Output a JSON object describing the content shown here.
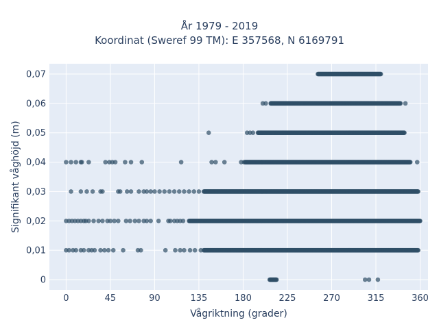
{
  "chart_data": {
    "type": "scatter",
    "title_lines": [
      "År 1979 - 2019",
      "Koordinat (Sweref 99 TM): E 357568, N 6169791"
    ],
    "xlabel": "Vågriktning (grader)",
    "ylabel": "Signifikant våghöjd (m)",
    "xlim": [
      -17,
      368
    ],
    "ylim": [
      -0.0035,
      0.0735
    ],
    "x_ticks": [
      0,
      45,
      90,
      135,
      180,
      225,
      270,
      315,
      360
    ],
    "x_tick_labels": [
      "0",
      "45",
      "90",
      "135",
      "180",
      "225",
      "270",
      "315",
      "360"
    ],
    "y_ticks": [
      0,
      0.01,
      0.02,
      0.03,
      0.04,
      0.05,
      0.06,
      0.07
    ],
    "y_tick_labels": [
      "0",
      "0,01",
      "0,02",
      "0,03",
      "0,04",
      "0,05",
      "0,06",
      "0,07"
    ],
    "grid": true,
    "legend": false,
    "marker_color": "#2f4f66",
    "plot_background": "#e5ecf6",
    "rows": [
      {
        "y": 0.07,
        "dense": [
          [
            256,
            320
          ]
        ],
        "scattered": []
      },
      {
        "y": 0.06,
        "dense": [
          [
            208,
            340
          ]
        ],
        "scattered": [
          200,
          203,
          345
        ]
      },
      {
        "y": 0.05,
        "dense": [
          [
            195,
            344
          ]
        ],
        "scattered": [
          145,
          184,
          187,
          190
        ]
      },
      {
        "y": 0.04,
        "dense": [
          [
            182,
            350
          ]
        ],
        "scattered": [
          0,
          5,
          10,
          15,
          16,
          23,
          40,
          44,
          47,
          50,
          60,
          66,
          77,
          117,
          148,
          152,
          161,
          178,
          181,
          357
        ]
      },
      {
        "y": 0.03,
        "dense": [
          [
            140,
            358
          ]
        ],
        "scattered": [
          5,
          15,
          21,
          27,
          35,
          37,
          53,
          55,
          62,
          66,
          74,
          79,
          82,
          86,
          90,
          95,
          100,
          105,
          110,
          115,
          120,
          125,
          130,
          135
        ]
      },
      {
        "y": 0.02,
        "dense": [
          [
            125,
            360
          ]
        ],
        "scattered": [
          0,
          3,
          6,
          9,
          12,
          15,
          18,
          20,
          23,
          28,
          33,
          37,
          42,
          45,
          49,
          53,
          61,
          65,
          70,
          74,
          79,
          82,
          86,
          94,
          104,
          106,
          110,
          113,
          116,
          119
        ]
      },
      {
        "y": 0.01,
        "dense": [
          [
            140,
            358
          ]
        ],
        "scattered": [
          0,
          3,
          7,
          10,
          15,
          18,
          23,
          26,
          29,
          35,
          39,
          43,
          48,
          58,
          73,
          76,
          101,
          111,
          116,
          120,
          126,
          131,
          137
        ]
      },
      {
        "y": 0.0,
        "dense": [
          [
            207,
            214
          ]
        ],
        "scattered": [
          304,
          308,
          317
        ]
      }
    ]
  }
}
